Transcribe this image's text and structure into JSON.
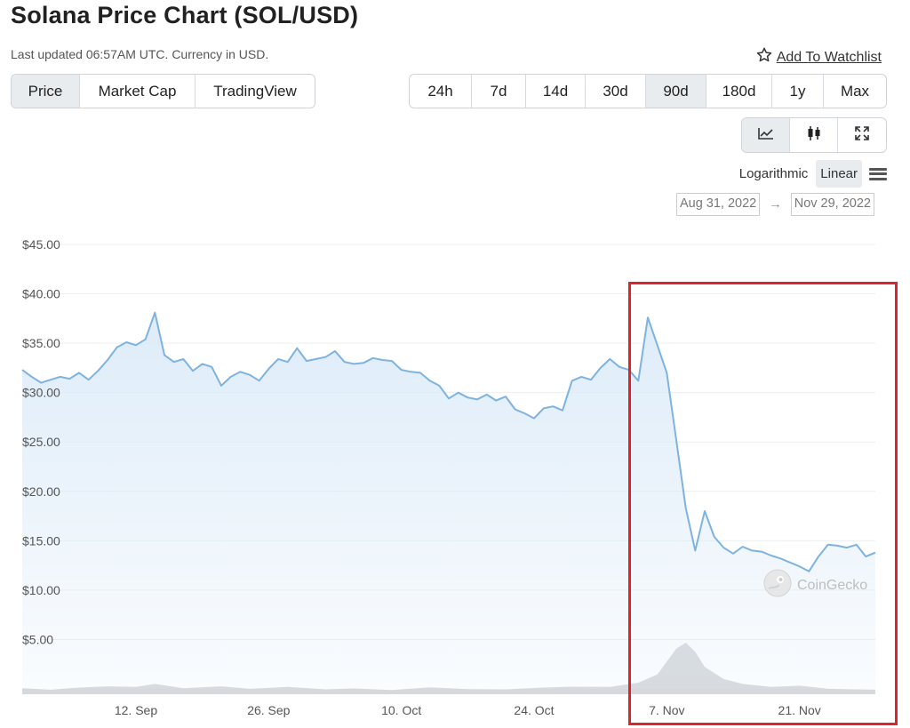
{
  "header": {
    "title": "Solana Price Chart (SOL/USD)",
    "updated": "Last updated 06:57AM UTC. Currency in USD.",
    "watchlist_label": "Add To Watchlist"
  },
  "view_tabs": [
    {
      "label": "Price",
      "active": true
    },
    {
      "label": "Market Cap",
      "active": false
    },
    {
      "label": "TradingView",
      "active": false
    }
  ],
  "range_tabs": [
    {
      "label": "24h",
      "active": false
    },
    {
      "label": "7d",
      "active": false
    },
    {
      "label": "14d",
      "active": false
    },
    {
      "label": "30d",
      "active": false
    },
    {
      "label": "90d",
      "active": true
    },
    {
      "label": "180d",
      "active": false
    },
    {
      "label": "1y",
      "active": false
    },
    {
      "label": "Max",
      "active": false
    }
  ],
  "chart_types": [
    {
      "icon": "line-chart-icon",
      "active": true
    },
    {
      "icon": "candlestick-icon",
      "active": false
    },
    {
      "icon": "fullscreen-icon",
      "active": false
    }
  ],
  "scale": {
    "log_label": "Logarithmic",
    "linear_label": "Linear",
    "active": "linear"
  },
  "date_range": {
    "from": "Aug 31, 2022",
    "to": "Nov 29, 2022",
    "arrow": "→"
  },
  "watermark": "CoinGecko",
  "colors": {
    "line": "#7eb3e0",
    "fill_top": "#dcebf8",
    "volume": "#d6d8db",
    "highlight": "#d9252b"
  },
  "chart_data": {
    "type": "area",
    "title": "Solana Price Chart (SOL/USD)",
    "xlabel": "",
    "ylabel": "",
    "ylim": [
      0,
      45
    ],
    "xlim": [
      "2022-08-31",
      "2022-11-29"
    ],
    "y_ticks": [
      {
        "value": 45,
        "label": "$45.00"
      },
      {
        "value": 40,
        "label": "$40.00"
      },
      {
        "value": 35,
        "label": "$35.00"
      },
      {
        "value": 30,
        "label": "$30.00"
      },
      {
        "value": 25,
        "label": "$25.00"
      },
      {
        "value": 20,
        "label": "$20.00"
      },
      {
        "value": 15,
        "label": "$15.00"
      },
      {
        "value": 10,
        "label": "$10.00"
      },
      {
        "value": 5,
        "label": "$5.00"
      }
    ],
    "x_ticks": [
      {
        "date": "2022-09-12",
        "label": "12. Sep"
      },
      {
        "date": "2022-09-26",
        "label": "26. Sep"
      },
      {
        "date": "2022-10-10",
        "label": "10. Oct"
      },
      {
        "date": "2022-10-24",
        "label": "24. Oct"
      },
      {
        "date": "2022-11-07",
        "label": "7. Nov"
      },
      {
        "date": "2022-11-21",
        "label": "21. Nov"
      }
    ],
    "grid": true,
    "series": [
      {
        "values": [
          [
            "2022-08-31",
            32.3
          ],
          [
            "2022-09-01",
            31.6
          ],
          [
            "2022-09-02",
            31.0
          ],
          [
            "2022-09-03",
            31.3
          ],
          [
            "2022-09-04",
            31.6
          ],
          [
            "2022-09-05",
            31.4
          ],
          [
            "2022-09-06",
            32.0
          ],
          [
            "2022-09-07",
            31.3
          ],
          [
            "2022-09-08",
            32.2
          ],
          [
            "2022-09-09",
            33.3
          ],
          [
            "2022-09-10",
            34.6
          ],
          [
            "2022-09-11",
            35.1
          ],
          [
            "2022-09-12",
            34.8
          ],
          [
            "2022-09-13",
            35.4
          ],
          [
            "2022-09-14",
            38.1
          ],
          [
            "2022-09-15",
            33.8
          ],
          [
            "2022-09-16",
            33.1
          ],
          [
            "2022-09-17",
            33.4
          ],
          [
            "2022-09-18",
            32.2
          ],
          [
            "2022-09-19",
            32.9
          ],
          [
            "2022-09-20",
            32.6
          ],
          [
            "2022-09-21",
            30.7
          ],
          [
            "2022-09-22",
            31.6
          ],
          [
            "2022-09-23",
            32.1
          ],
          [
            "2022-09-24",
            31.8
          ],
          [
            "2022-09-25",
            31.2
          ],
          [
            "2022-09-26",
            32.4
          ],
          [
            "2022-09-27",
            33.4
          ],
          [
            "2022-09-28",
            33.1
          ],
          [
            "2022-09-29",
            34.5
          ],
          [
            "2022-09-30",
            33.2
          ],
          [
            "2022-10-01",
            33.4
          ],
          [
            "2022-10-02",
            33.6
          ],
          [
            "2022-10-03",
            34.2
          ],
          [
            "2022-10-04",
            33.1
          ],
          [
            "2022-10-05",
            32.9
          ],
          [
            "2022-10-06",
            33.0
          ],
          [
            "2022-10-07",
            33.5
          ],
          [
            "2022-10-08",
            33.3
          ],
          [
            "2022-10-09",
            33.2
          ],
          [
            "2022-10-10",
            32.3
          ],
          [
            "2022-10-11",
            32.1
          ],
          [
            "2022-10-12",
            32.0
          ],
          [
            "2022-10-13",
            31.2
          ],
          [
            "2022-10-14",
            30.7
          ],
          [
            "2022-10-15",
            29.4
          ],
          [
            "2022-10-16",
            30.0
          ],
          [
            "2022-10-17",
            29.5
          ],
          [
            "2022-10-18",
            29.3
          ],
          [
            "2022-10-19",
            29.8
          ],
          [
            "2022-10-20",
            29.2
          ],
          [
            "2022-10-21",
            29.6
          ],
          [
            "2022-10-22",
            28.3
          ],
          [
            "2022-10-23",
            27.9
          ],
          [
            "2022-10-24",
            27.4
          ],
          [
            "2022-10-25",
            28.4
          ],
          [
            "2022-10-26",
            28.6
          ],
          [
            "2022-10-27",
            28.2
          ],
          [
            "2022-10-28",
            31.2
          ],
          [
            "2022-10-29",
            31.6
          ],
          [
            "2022-10-30",
            31.3
          ],
          [
            "2022-10-31",
            32.5
          ],
          [
            "2022-11-01",
            33.4
          ],
          [
            "2022-11-02",
            32.6
          ],
          [
            "2022-11-03",
            32.3
          ],
          [
            "2022-11-04",
            31.2
          ],
          [
            "2022-11-05",
            37.6
          ],
          [
            "2022-11-06",
            34.8
          ],
          [
            "2022-11-07",
            32.0
          ],
          [
            "2022-11-08",
            25.2
          ],
          [
            "2022-11-09",
            18.3
          ],
          [
            "2022-11-10",
            14.0
          ],
          [
            "2022-11-11",
            18.0
          ],
          [
            "2022-11-12",
            15.4
          ],
          [
            "2022-11-13",
            14.3
          ],
          [
            "2022-11-14",
            13.7
          ],
          [
            "2022-11-15",
            14.4
          ],
          [
            "2022-11-16",
            14.0
          ],
          [
            "2022-11-17",
            13.9
          ],
          [
            "2022-11-18",
            13.5
          ],
          [
            "2022-11-19",
            13.2
          ],
          [
            "2022-11-20",
            12.8
          ],
          [
            "2022-11-21",
            12.4
          ],
          [
            "2022-11-22",
            11.9
          ],
          [
            "2022-11-23",
            13.4
          ],
          [
            "2022-11-24",
            14.6
          ],
          [
            "2022-11-25",
            14.5
          ],
          [
            "2022-11-26",
            14.3
          ],
          [
            "2022-11-27",
            14.6
          ],
          [
            "2022-11-28",
            13.4
          ],
          [
            "2022-11-29",
            13.8
          ]
        ]
      }
    ],
    "volume": [
      [
        "2022-08-31",
        2.0
      ],
      [
        "2022-09-03",
        1.5
      ],
      [
        "2022-09-06",
        2.2
      ],
      [
        "2022-09-09",
        2.6
      ],
      [
        "2022-09-12",
        2.4
      ],
      [
        "2022-09-14",
        3.4
      ],
      [
        "2022-09-17",
        2.0
      ],
      [
        "2022-09-21",
        2.6
      ],
      [
        "2022-09-24",
        1.8
      ],
      [
        "2022-09-28",
        2.4
      ],
      [
        "2022-10-02",
        1.6
      ],
      [
        "2022-10-05",
        1.9
      ],
      [
        "2022-10-09",
        1.4
      ],
      [
        "2022-10-13",
        2.3
      ],
      [
        "2022-10-17",
        1.7
      ],
      [
        "2022-10-21",
        1.6
      ],
      [
        "2022-10-25",
        2.2
      ],
      [
        "2022-10-28",
        2.5
      ],
      [
        "2022-11-01",
        2.4
      ],
      [
        "2022-11-04",
        3.8
      ],
      [
        "2022-11-06",
        6.5
      ],
      [
        "2022-11-08",
        15.0
      ],
      [
        "2022-11-09",
        17.0
      ],
      [
        "2022-11-10",
        14.0
      ],
      [
        "2022-11-11",
        9.0
      ],
      [
        "2022-11-13",
        5.0
      ],
      [
        "2022-11-15",
        3.4
      ],
      [
        "2022-11-18",
        2.4
      ],
      [
        "2022-11-21",
        2.8
      ],
      [
        "2022-11-24",
        1.8
      ],
      [
        "2022-11-27",
        1.6
      ],
      [
        "2022-11-29",
        1.5
      ]
    ]
  }
}
